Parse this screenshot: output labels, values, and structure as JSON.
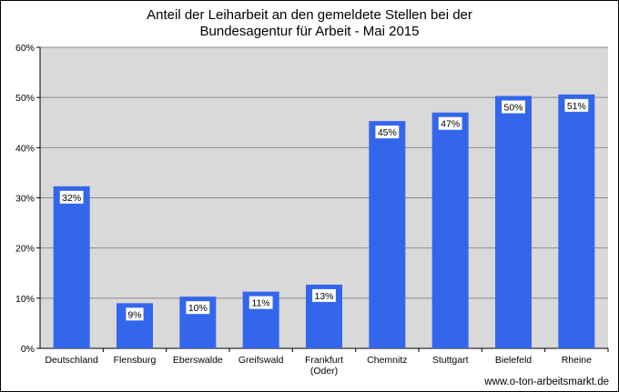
{
  "chart_data": {
    "type": "bar",
    "title_lines": [
      "Anteil der Leiharbeit an den gemeldete Stellen bei der",
      "Bundesagentur für Arbeit - Mai 2015"
    ],
    "categories": [
      [
        "Deutschland"
      ],
      [
        "Flensburg"
      ],
      [
        "Eberswalde"
      ],
      [
        "Greifswald"
      ],
      [
        "Frankfurt",
        "(Oder)"
      ],
      [
        "Chemnitz"
      ],
      [
        "Stuttgart"
      ],
      [
        "Bielefeld"
      ],
      [
        "Rheine"
      ]
    ],
    "values": [
      32.3,
      9.0,
      10.3,
      11.3,
      12.7,
      45.3,
      47.0,
      50.3,
      50.6
    ],
    "data_labels": [
      "32%",
      "9%",
      "10%",
      "11%",
      "13%",
      "45%",
      "47%",
      "50%",
      "51%"
    ],
    "yticks": [
      "0%",
      "10%",
      "20%",
      "30%",
      "40%",
      "50%",
      "60%"
    ],
    "ylim": [
      0,
      60
    ],
    "grid": true,
    "legend": "none",
    "colors": {
      "bar": "#3466EC",
      "plot_background": "#D9D9D9",
      "grid": "#8C8C8C"
    }
  },
  "footer": "www.o-ton-arbeitsmarkt.de"
}
